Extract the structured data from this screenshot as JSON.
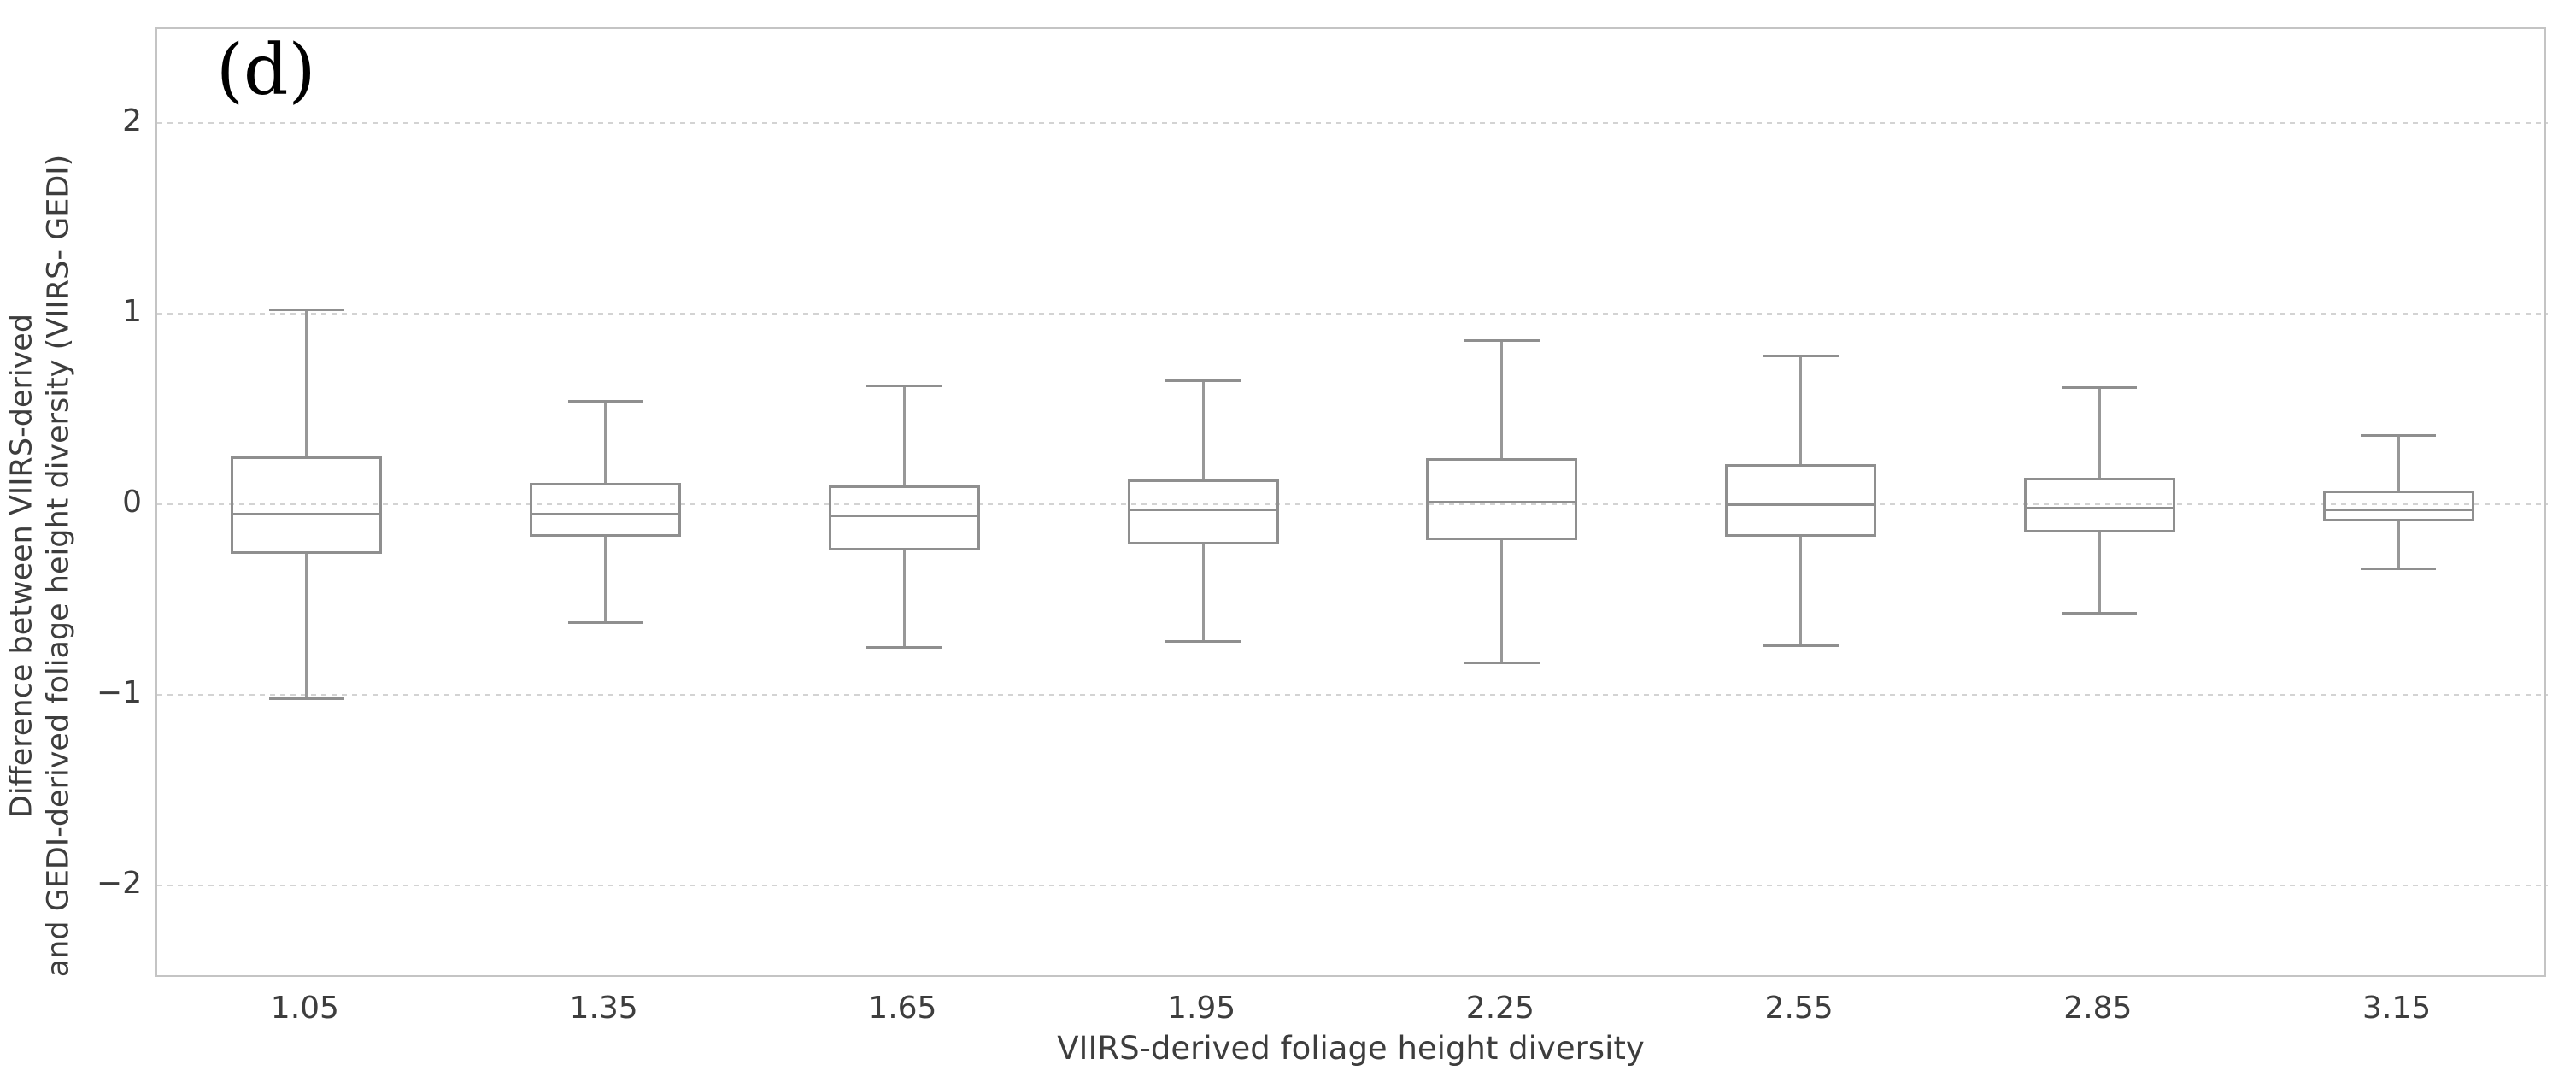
{
  "figure": {
    "panel_label": "(d)",
    "x_axis": {
      "title": "VIIRS-derived foliage height diversity",
      "tick_labels": [
        "1.05",
        "1.35",
        "1.65",
        "1.95",
        "2.25",
        "2.55",
        "2.85",
        "3.15"
      ]
    },
    "y_axis": {
      "title_line1": "Difference between VIIRS-derived",
      "title_line2": "and GEDI-derived foliage height diversity (VIIRS- GEDI)",
      "tick_labels": [
        "2",
        "1",
        "0",
        "−1",
        "−2"
      ],
      "tick_values": [
        2,
        1,
        0,
        -1,
        -2
      ]
    },
    "colors": {
      "box_line": "#8f8f8f",
      "whisker_line": "#989898",
      "grid_line": "#d3d3d3",
      "spine": "#c4c4c4",
      "text": "#3d3d3d",
      "panel_label": "#000000"
    }
  },
  "chart_data": {
    "type": "boxplot",
    "title": "(d)",
    "xlabel": "VIIRS-derived foliage height diversity",
    "ylabel": "Difference between VIIRS-derived and GEDI-derived foliage height diversity (VIIRS- GEDI)",
    "categories": [
      "1.05",
      "1.35",
      "1.65",
      "1.95",
      "2.25",
      "2.55",
      "2.85",
      "3.15"
    ],
    "ylim": [
      -2.5,
      2.5
    ],
    "yticks": [
      2,
      1,
      0,
      -1,
      -2
    ],
    "grid": true,
    "legend": "none",
    "series": [
      {
        "category": "1.05",
        "whisker_low": -1.02,
        "q1": -0.26,
        "median": -0.05,
        "q3": 0.25,
        "whisker_high": 1.02
      },
      {
        "category": "1.35",
        "whisker_low": -0.62,
        "q1": -0.17,
        "median": -0.05,
        "q3": 0.11,
        "whisker_high": 0.54
      },
      {
        "category": "1.65",
        "whisker_low": -0.75,
        "q1": -0.24,
        "median": -0.06,
        "q3": 0.1,
        "whisker_high": 0.62
      },
      {
        "category": "1.95",
        "whisker_low": -0.72,
        "q1": -0.21,
        "median": -0.03,
        "q3": 0.13,
        "whisker_high": 0.65
      },
      {
        "category": "2.25",
        "whisker_low": -0.83,
        "q1": -0.19,
        "median": 0.01,
        "q3": 0.24,
        "whisker_high": 0.86
      },
      {
        "category": "2.55",
        "whisker_low": -0.74,
        "q1": -0.17,
        "median": 0.0,
        "q3": 0.21,
        "whisker_high": 0.78
      },
      {
        "category": "2.85",
        "whisker_low": -0.57,
        "q1": -0.15,
        "median": -0.02,
        "q3": 0.14,
        "whisker_high": 0.61
      },
      {
        "category": "3.15",
        "whisker_low": -0.34,
        "q1": -0.09,
        "median": -0.03,
        "q3": 0.07,
        "whisker_high": 0.36
      }
    ]
  }
}
